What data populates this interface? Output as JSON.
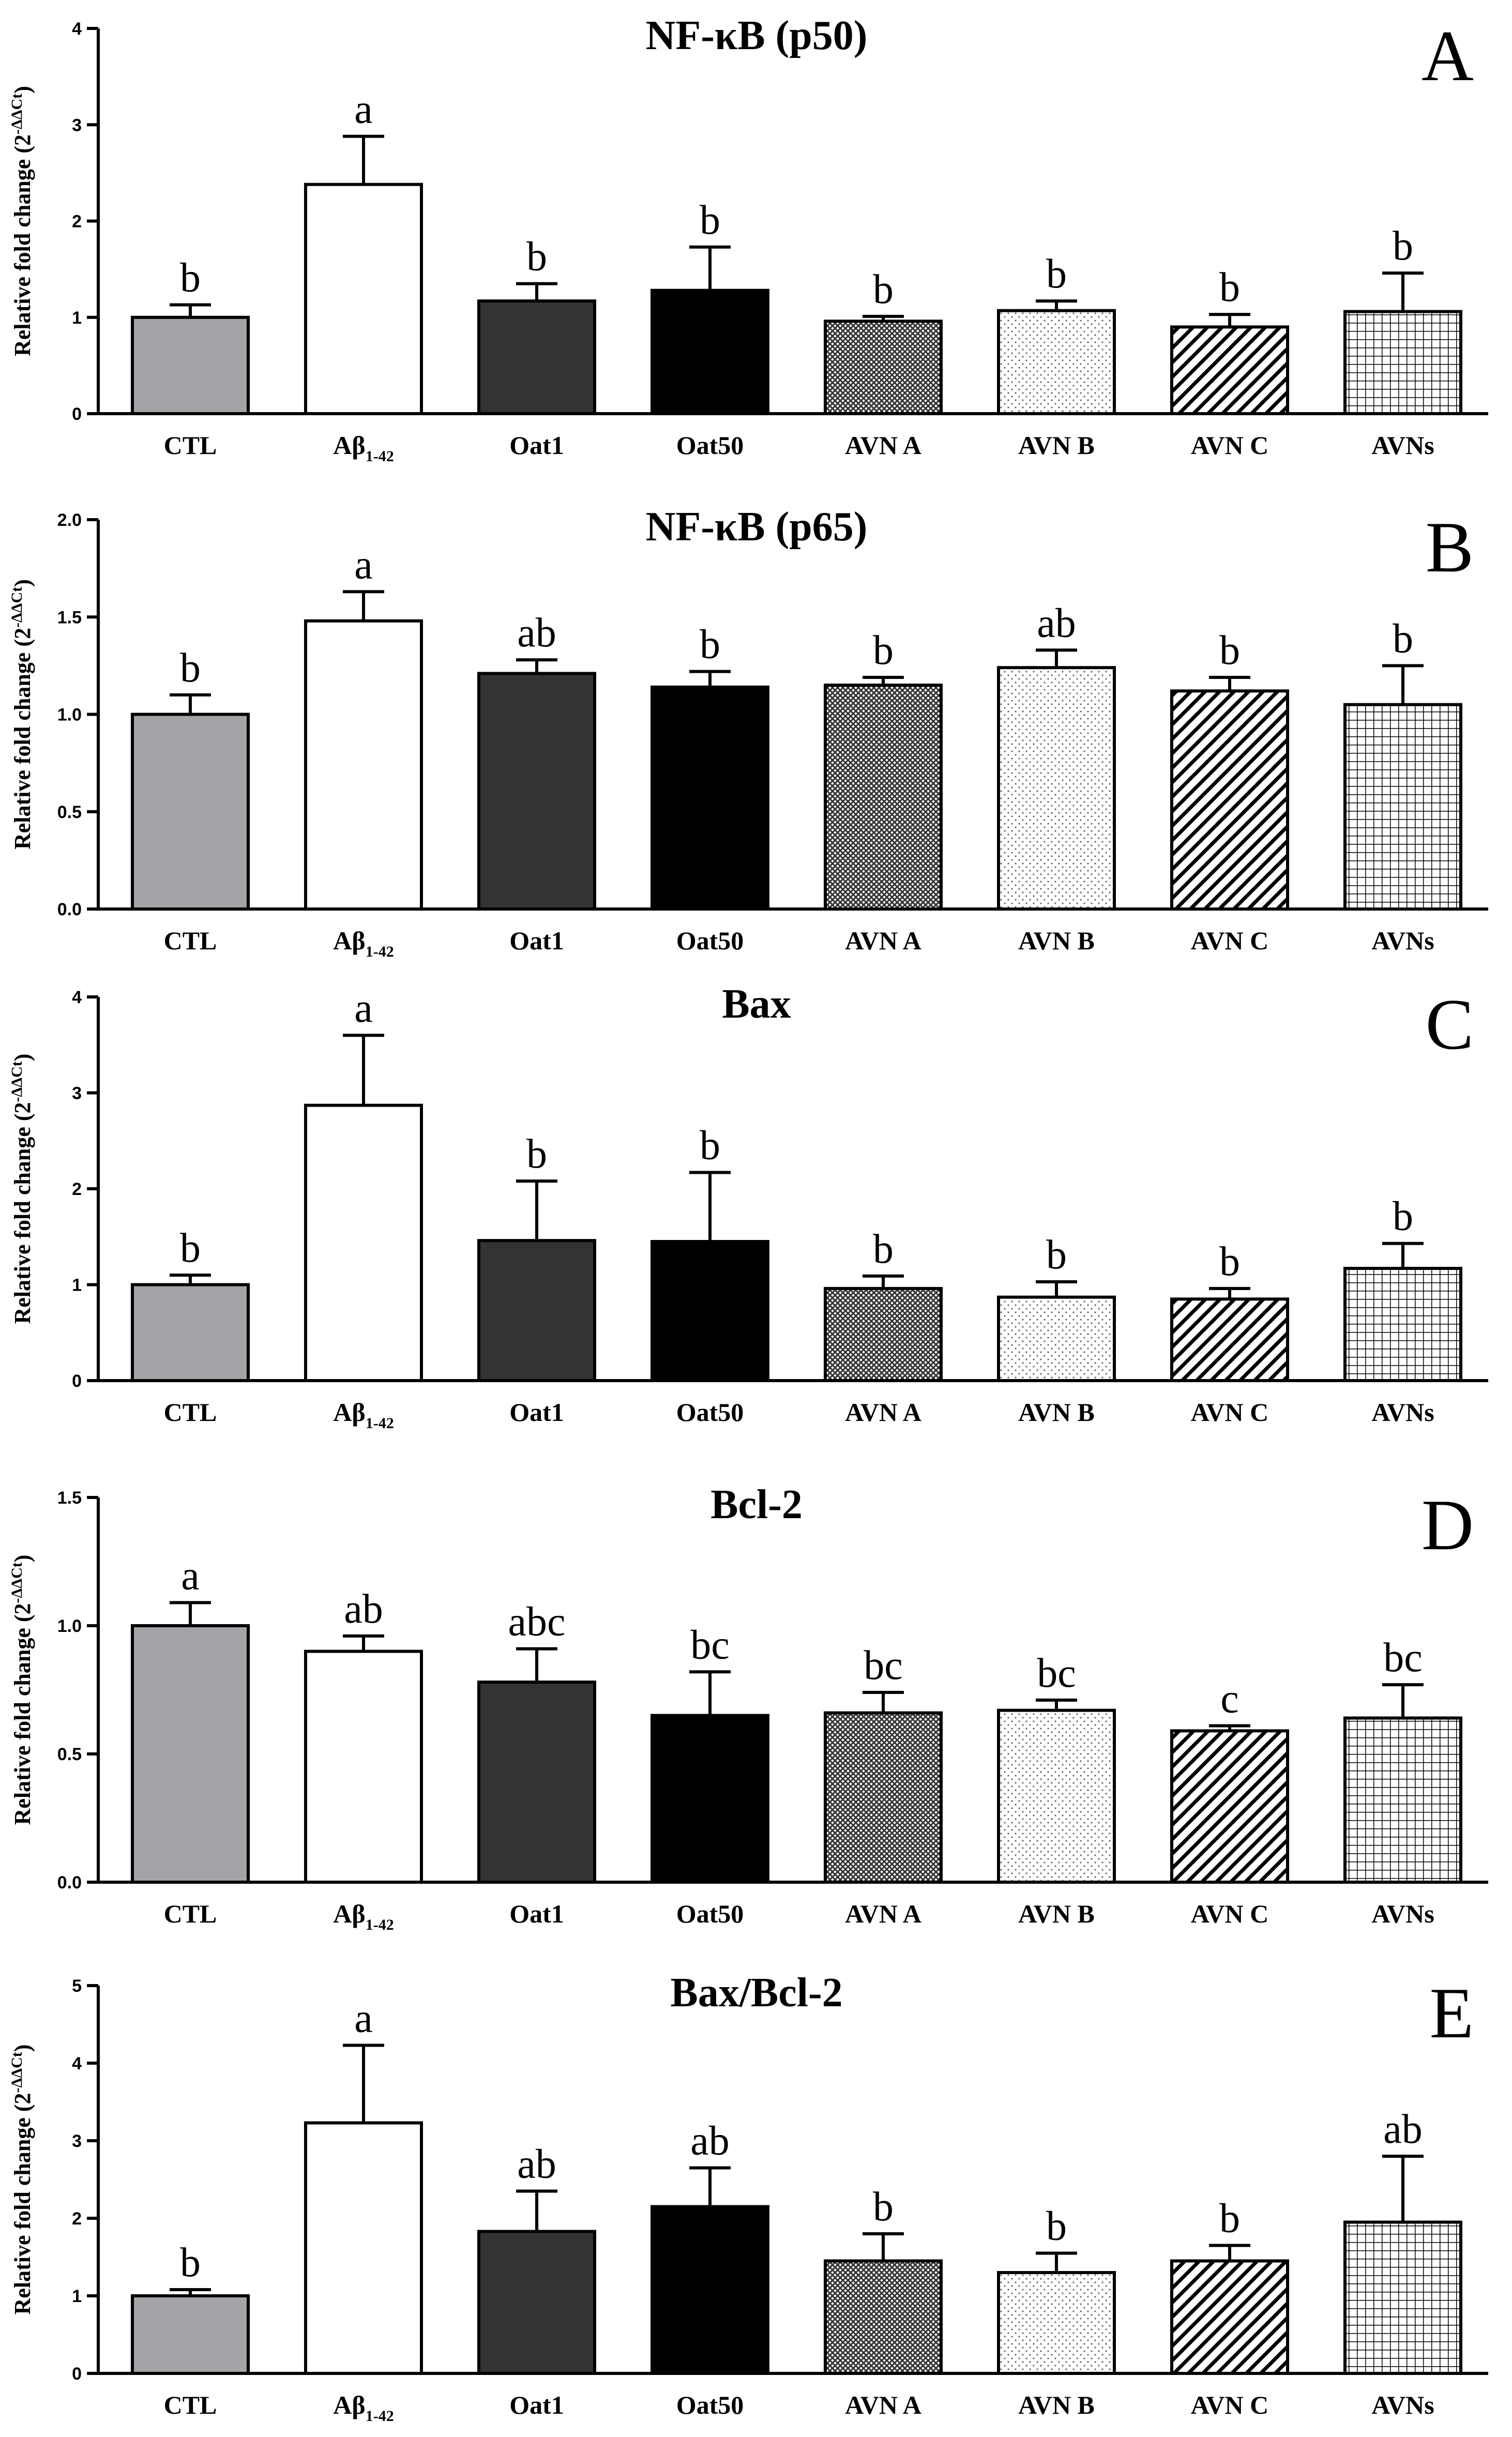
{
  "colors": {
    "CTL": "#a3a3a8",
    "Aβ": "#ffffff",
    "Oat1": "#333333",
    "Oat50": "#000000",
    "AVN A": "pattern-crosshatch-fine",
    "AVN B": "pattern-dots",
    "AVN C": "pattern-diagonal",
    "AVNs": "pattern-grid"
  },
  "chart_data": [
    {
      "type": "bar",
      "panel": "A",
      "title": "NF-κB (p50)",
      "ylabel": "Relative fold change (2",
      "ylabel_sup": "-ΔΔCt",
      "ylabel_end": ")",
      "categories": [
        "CTL",
        "Aβ",
        "Oat1",
        "Oat50",
        "AVN A",
        "AVN B",
        "AVN C",
        "AVNs"
      ],
      "category_sub": {
        "1": "1-42"
      },
      "values": [
        1.0,
        2.38,
        1.17,
        1.28,
        0.96,
        1.07,
        0.9,
        1.06
      ],
      "errors": [
        0.13,
        0.5,
        0.18,
        0.45,
        0.05,
        0.1,
        0.13,
        0.4
      ],
      "significance": [
        "b",
        "a",
        "b",
        "b",
        "b",
        "b",
        "b",
        "b"
      ],
      "ylim": [
        0,
        4
      ],
      "yticks": [
        0,
        1,
        2,
        3,
        4
      ],
      "tick_labels": [
        "0",
        "1",
        "2",
        "3",
        "4"
      ]
    },
    {
      "type": "bar",
      "panel": "B",
      "title": "NF-κB (p65)",
      "ylabel": "Relative fold change (2",
      "ylabel_sup": "-ΔΔCt",
      "ylabel_end": ")",
      "categories": [
        "CTL",
        "Aβ",
        "Oat1",
        "Oat50",
        "AVN A",
        "AVN B",
        "AVN C",
        "AVNs"
      ],
      "category_sub": {
        "1": "1-42"
      },
      "values": [
        1.0,
        1.48,
        1.21,
        1.14,
        1.15,
        1.24,
        1.12,
        1.05
      ],
      "errors": [
        0.1,
        0.15,
        0.07,
        0.08,
        0.04,
        0.09,
        0.07,
        0.2
      ],
      "significance": [
        "b",
        "a",
        "ab",
        "b",
        "b",
        "ab",
        "b",
        "b"
      ],
      "ylim": [
        0,
        2
      ],
      "yticks": [
        0,
        0.5,
        1,
        1.5,
        2
      ],
      "tick_labels": [
        "0.0",
        "0.5",
        "1.0",
        "1.5",
        "2.0"
      ]
    },
    {
      "type": "bar",
      "panel": "C",
      "title": "Bax",
      "ylabel": "Relative fold change (2",
      "ylabel_sup": "-ΔΔCt",
      "ylabel_end": ")",
      "categories": [
        "CTL",
        "Aβ",
        "Oat1",
        "Oat50",
        "AVN A",
        "AVN B",
        "AVN C",
        "AVNs"
      ],
      "category_sub": {
        "1": "1-42"
      },
      "values": [
        1.0,
        2.87,
        1.46,
        1.45,
        0.96,
        0.87,
        0.85,
        1.17
      ],
      "errors": [
        0.1,
        0.73,
        0.62,
        0.72,
        0.13,
        0.16,
        0.11,
        0.26
      ],
      "significance": [
        "b",
        "a",
        "b",
        "b",
        "b",
        "b",
        "b",
        "b"
      ],
      "ylim": [
        0,
        4
      ],
      "yticks": [
        0,
        1,
        2,
        3,
        4
      ],
      "tick_labels": [
        "0",
        "1",
        "2",
        "3",
        "4"
      ]
    },
    {
      "type": "bar",
      "panel": "D",
      "title": "Bcl-2",
      "ylabel": "Relative fold change (2",
      "ylabel_sup": "-ΔΔCt",
      "ylabel_end": ")",
      "categories": [
        "CTL",
        "Aβ",
        "Oat1",
        "Oat50",
        "AVN A",
        "AVN B",
        "AVN C",
        "AVNs"
      ],
      "category_sub": {
        "1": "1-42"
      },
      "values": [
        1.0,
        0.9,
        0.78,
        0.65,
        0.66,
        0.67,
        0.59,
        0.64
      ],
      "errors": [
        0.09,
        0.06,
        0.13,
        0.17,
        0.08,
        0.04,
        0.02,
        0.13
      ],
      "significance": [
        "a",
        "ab",
        "abc",
        "bc",
        "bc",
        "bc",
        "c",
        "bc"
      ],
      "ylim": [
        0,
        1.5
      ],
      "yticks": [
        0,
        0.5,
        1,
        1.5
      ],
      "tick_labels": [
        "0.0",
        "0.5",
        "1.0",
        "1.5"
      ]
    },
    {
      "type": "bar",
      "panel": "E",
      "title": "Bax/Bcl-2",
      "ylabel": "Relative fold change (2",
      "ylabel_sup": "-ΔΔCt",
      "ylabel_end": ")",
      "categories": [
        "CTL",
        "Aβ",
        "Oat1",
        "Oat50",
        "AVN A",
        "AVN B",
        "AVN C",
        "AVNs"
      ],
      "category_sub": {
        "1": "1-42"
      },
      "values": [
        1.0,
        3.23,
        1.83,
        2.15,
        1.45,
        1.3,
        1.45,
        1.95
      ],
      "errors": [
        0.08,
        1.0,
        0.52,
        0.5,
        0.35,
        0.25,
        0.2,
        0.85
      ],
      "significance": [
        "b",
        "a",
        "ab",
        "ab",
        "b",
        "b",
        "b",
        "ab"
      ],
      "ylim": [
        0,
        5
      ],
      "yticks": [
        0,
        1,
        2,
        3,
        4,
        5
      ],
      "tick_labels": [
        "0",
        "1",
        "2",
        "3",
        "4",
        "5"
      ]
    }
  ]
}
